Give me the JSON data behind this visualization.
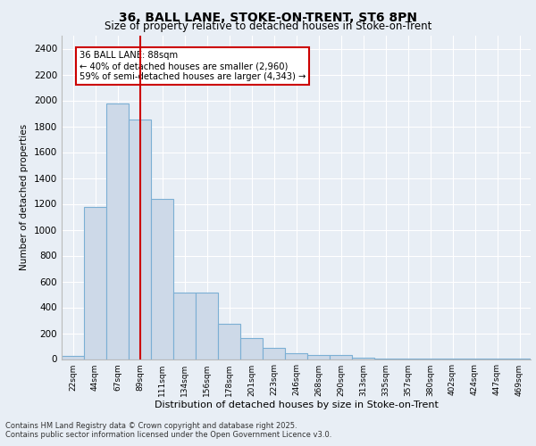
{
  "title_line1": "36, BALL LANE, STOKE-ON-TRENT, ST6 8PN",
  "title_line2": "Size of property relative to detached houses in Stoke-on-Trent",
  "xlabel": "Distribution of detached houses by size in Stoke-on-Trent",
  "ylabel": "Number of detached properties",
  "bar_labels": [
    "22sqm",
    "44sqm",
    "67sqm",
    "89sqm",
    "111sqm",
    "134sqm",
    "156sqm",
    "178sqm",
    "201sqm",
    "223sqm",
    "246sqm",
    "268sqm",
    "290sqm",
    "313sqm",
    "335sqm",
    "357sqm",
    "380sqm",
    "402sqm",
    "424sqm",
    "447sqm",
    "469sqm"
  ],
  "bar_values": [
    25,
    1175,
    1975,
    1850,
    1240,
    515,
    515,
    270,
    160,
    85,
    45,
    30,
    30,
    10,
    5,
    5,
    3,
    2,
    2,
    2,
    2
  ],
  "bar_color": "#cdd9e8",
  "bar_edge_color": "#7bafd4",
  "vline_x": 3,
  "vline_color": "#cc0000",
  "annotation_title": "36 BALL LANE: 88sqm",
  "annotation_line1": "← 40% of detached houses are smaller (2,960)",
  "annotation_line2": "59% of semi-detached houses are larger (4,343) →",
  "annotation_box_color": "#cc0000",
  "ylim": [
    0,
    2500
  ],
  "yticks": [
    0,
    200,
    400,
    600,
    800,
    1000,
    1200,
    1400,
    1600,
    1800,
    2000,
    2200,
    2400
  ],
  "footer_line1": "Contains HM Land Registry data © Crown copyright and database right 2025.",
  "footer_line2": "Contains public sector information licensed under the Open Government Licence v3.0.",
  "bg_color": "#e8eef5",
  "plot_bg_color": "#e8eef5",
  "grid_color": "#ffffff"
}
